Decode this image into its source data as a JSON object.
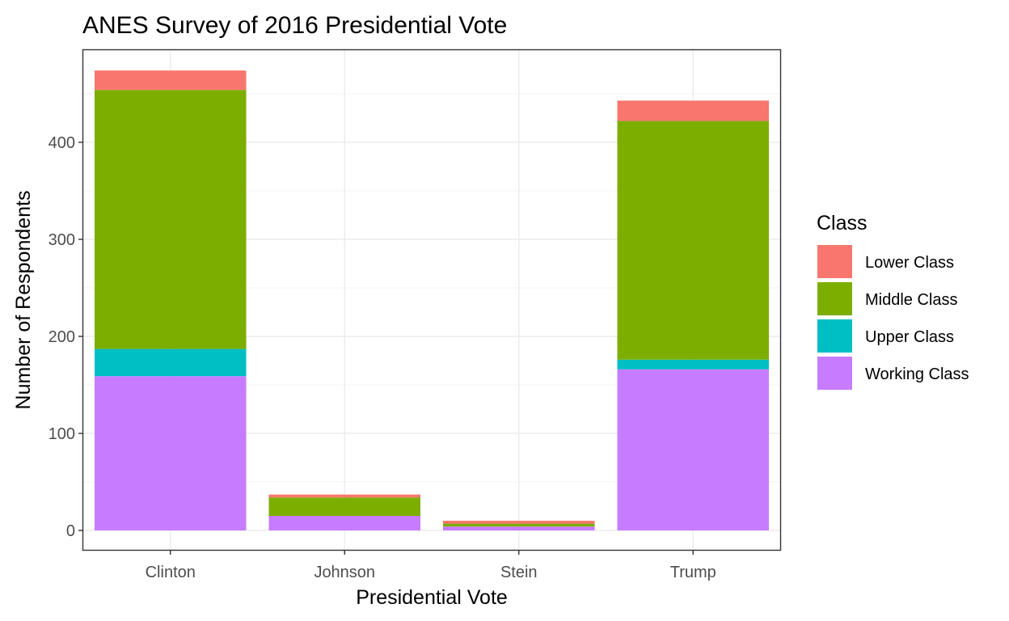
{
  "chart_data": {
    "type": "bar",
    "stacked": true,
    "title": "ANES Survey of 2016 Presidential Vote",
    "xlabel": "Presidential Vote",
    "ylabel": "Number of Respondents",
    "categories": [
      "Clinton",
      "Johnson",
      "Stein",
      "Trump"
    ],
    "ylim": [
      -20,
      495
    ],
    "yticks": [
      0,
      100,
      200,
      300,
      400
    ],
    "grid": true,
    "legend": {
      "title": "Class",
      "position": "right"
    },
    "stack_order_bottom_to_top": [
      "Working Class",
      "Upper Class",
      "Middle Class",
      "Lower Class"
    ],
    "series": [
      {
        "name": "Lower Class",
        "color": "#F8766D",
        "values": [
          20,
          3,
          3,
          21
        ]
      },
      {
        "name": "Middle Class",
        "color": "#7CAE00",
        "values": [
          267,
          19,
          3,
          246
        ]
      },
      {
        "name": "Upper Class",
        "color": "#00BFC4",
        "values": [
          28,
          0,
          0,
          10
        ]
      },
      {
        "name": "Working Class",
        "color": "#C77CFF",
        "values": [
          159,
          15,
          4,
          166
        ]
      }
    ]
  }
}
